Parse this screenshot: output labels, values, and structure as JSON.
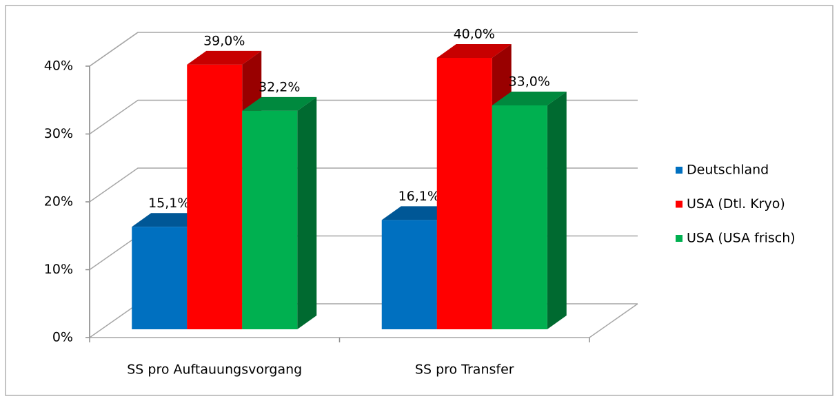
{
  "chart_data": {
    "type": "bar3d",
    "categories": [
      "SS pro Auftauungsvorgang",
      "SS pro Transfer"
    ],
    "series": [
      {
        "name": "Deutschland",
        "color": "#0070c0",
        "values": [
          15.1,
          16.1
        ],
        "value_labels": [
          "15,1%",
          "16,1%"
        ]
      },
      {
        "name": "USA (Dtl. Kryo)",
        "color": "#ff0000",
        "values": [
          39.0,
          40.0
        ],
        "value_labels": [
          "39,0%",
          "40,0%"
        ]
      },
      {
        "name": "USA (USA frisch)",
        "color": "#00b050",
        "values": [
          32.2,
          33.0
        ],
        "value_labels": [
          "32,2%",
          "33,0%"
        ]
      }
    ],
    "ylim": [
      0,
      40
    ],
    "yticks": [
      {
        "value": 0,
        "label": "0%"
      },
      {
        "value": 10,
        "label": "10%"
      },
      {
        "value": 20,
        "label": "20%"
      },
      {
        "value": 30,
        "label": "30%"
      },
      {
        "value": 40,
        "label": "40%"
      }
    ],
    "grid": true,
    "legend": "right"
  }
}
